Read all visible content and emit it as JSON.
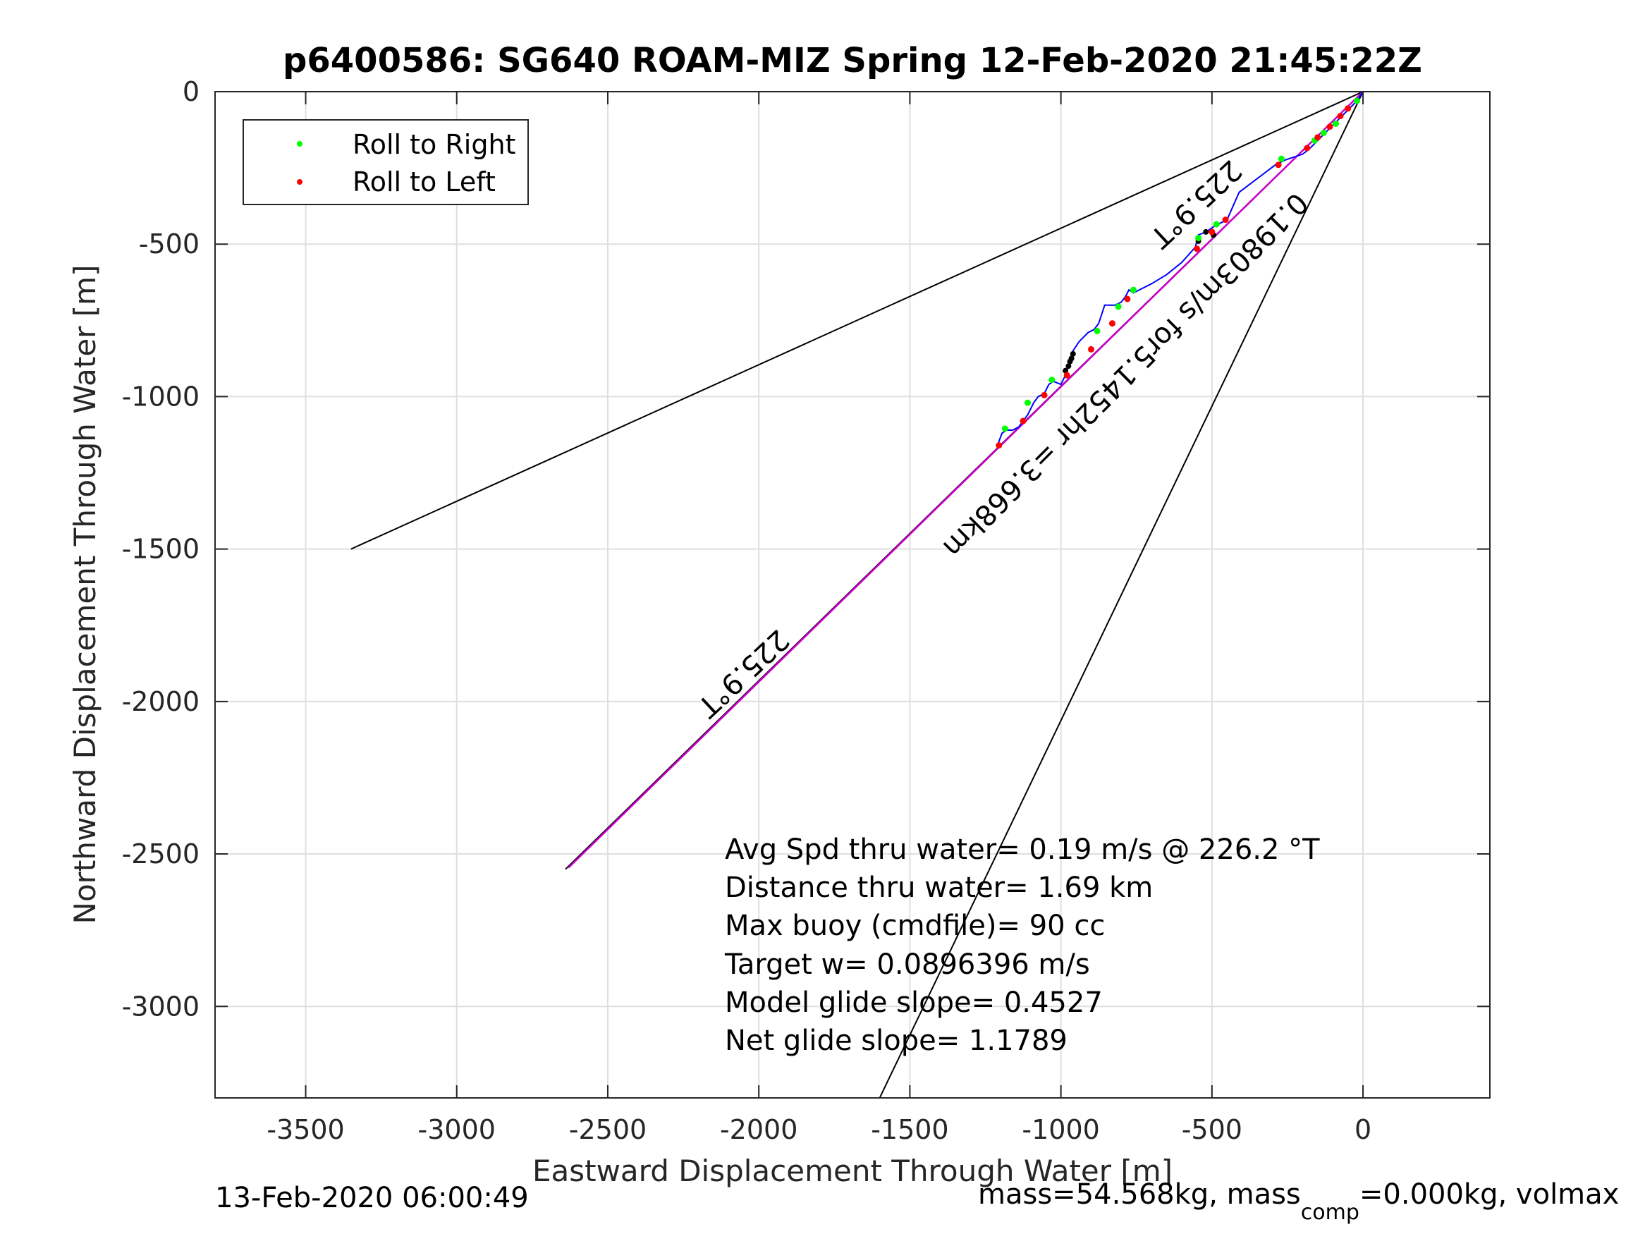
{
  "chart_data": {
    "type": "line",
    "title": "p6400586: SG640 ROAM-MIZ Spring 12-Feb-2020 21:45:22Z",
    "xlabel": "Eastward Displacement Through Water [m]",
    "ylabel": "Northward Displacement Through Water [m]",
    "xlim": [
      -3800,
      420
    ],
    "ylim": [
      -3300,
      0
    ],
    "xticks": [
      -3500,
      -3000,
      -2500,
      -2000,
      -1500,
      -1000,
      -500,
      0
    ],
    "yticks": [
      0,
      -500,
      -1000,
      -1500,
      -2000,
      -2500,
      -3000
    ],
    "grid": true,
    "legend_position": "top-left",
    "legend": [
      {
        "label": "Roll to Right",
        "color": "#00ff00"
      },
      {
        "label": "Roll to Left",
        "color": "#ff0000"
      }
    ],
    "colors": {
      "track": "#0000ff",
      "heading": "#cc00cc",
      "roll_right": "#00ff00",
      "roll_left": "#ff0000",
      "turn": "#000000",
      "guide": "#000000"
    },
    "guide_lines": [
      {
        "x": [
          0,
          -3350
        ],
        "y": [
          0,
          -1500
        ]
      },
      {
        "x": [
          0,
          -1600
        ],
        "y": [
          0,
          -3300
        ]
      },
      {
        "x": [
          0,
          -2640
        ],
        "y": [
          0,
          -2550
        ]
      }
    ],
    "heading_line": {
      "x": [
        0,
        -2630
      ],
      "y": [
        0,
        -2545
      ]
    },
    "track": {
      "x": [
        0,
        -20,
        -45,
        -60,
        -80,
        -100,
        -120,
        -140,
        -160,
        -180,
        -200,
        -230,
        -260,
        -290,
        -330,
        -370,
        -410,
        -450,
        -470,
        -490,
        -520,
        -545,
        -555,
        -600,
        -650,
        -700,
        -760,
        -775,
        -785,
        -800,
        -820,
        -855,
        -875,
        -890,
        -910,
        -940,
        -960,
        -965,
        -970,
        -975,
        -985,
        -1000,
        -1025,
        -1040,
        -1055,
        -1075,
        -1090,
        -1110,
        -1125,
        -1140,
        -1160,
        -1180,
        -1195,
        -1210
      ],
      "y": [
        0,
        -30,
        -55,
        -70,
        -90,
        -110,
        -130,
        -150,
        -170,
        -190,
        -205,
        -215,
        -225,
        -240,
        -270,
        -300,
        -330,
        -420,
        -430,
        -440,
        -460,
        -470,
        -510,
        -560,
        -600,
        -630,
        -660,
        -650,
        -670,
        -690,
        -700,
        -700,
        -760,
        -780,
        -790,
        -820,
        -850,
        -870,
        -880,
        -900,
        -930,
        -960,
        -950,
        -960,
        -990,
        -1000,
        -1020,
        -1060,
        -1080,
        -1100,
        -1110,
        -1110,
        -1120,
        -1160
      ]
    },
    "roll_right": {
      "x": [
        -20,
        -90,
        -130,
        -160,
        -270,
        -485,
        -545,
        -760,
        -810,
        -880,
        -1030,
        -1110,
        -1185
      ],
      "y": [
        -30,
        -105,
        -135,
        -160,
        -220,
        -435,
        -480,
        -650,
        -705,
        -785,
        -945,
        -1020,
        -1105
      ]
    },
    "roll_left": {
      "x": [
        -50,
        -75,
        -110,
        -150,
        -185,
        -280,
        -455,
        -500,
        -550,
        -780,
        -830,
        -900,
        -980,
        -1055,
        -1125,
        -1205
      ],
      "y": [
        -55,
        -80,
        -115,
        -150,
        -185,
        -240,
        -420,
        -460,
        -515,
        -680,
        -760,
        -845,
        -930,
        -995,
        -1080,
        -1160
      ]
    },
    "turn_points": {
      "x": [
        -495,
        -520,
        -545,
        -960,
        -965,
        -970,
        -975,
        -985
      ],
      "y": [
        -470,
        -460,
        -490,
        -860,
        -875,
        -885,
        -900,
        -915
      ]
    },
    "annotations": {
      "heading_label_upper": "225.9°T",
      "heading_label_lower": "225.9°T",
      "speed_label": "0.19803m/s for5.1452hr =3.668km"
    },
    "stats": [
      "Avg Spd thru water=  0.19 m/s @ 226.2 °T",
      "Distance thru water=  1.69 km",
      "Max buoy (cmdfile)= 90 cc",
      "Target w= 0.0896396 m/s",
      "Model glide slope= 0.4527",
      "Net glide slope= 1.1789"
    ],
    "footer_left": "13-Feb-2020 06:00:49",
    "footer_right": {
      "part1": "mass=54.568kg, mass",
      "subscript": "comp",
      "part2": "=0.000kg, volmax"
    }
  }
}
